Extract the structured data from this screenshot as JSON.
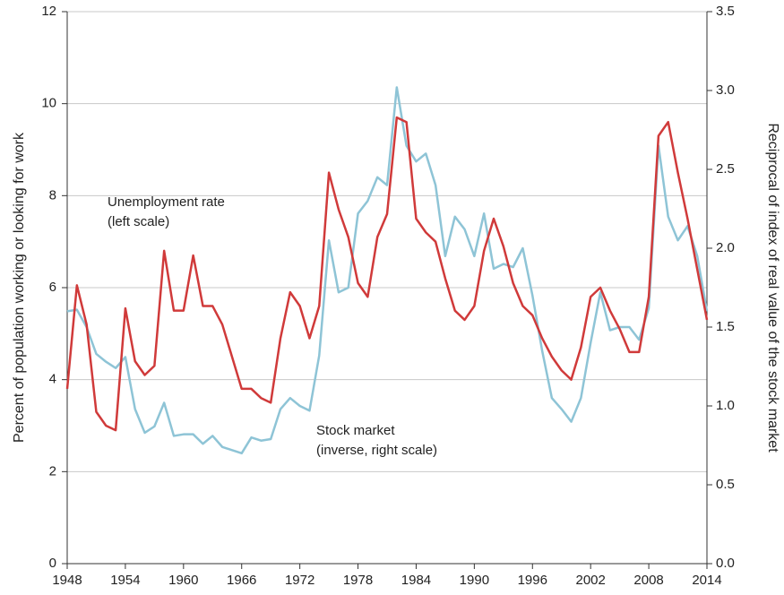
{
  "chart_data": {
    "type": "line",
    "y_label": "Percent of population working or looking for work",
    "y2_label": "Reciprocal of index of real value of the stock market",
    "x": [
      1948,
      1949,
      1950,
      1951,
      1952,
      1953,
      1954,
      1955,
      1956,
      1957,
      1958,
      1959,
      1960,
      1961,
      1962,
      1963,
      1964,
      1965,
      1966,
      1967,
      1968,
      1969,
      1970,
      1971,
      1972,
      1973,
      1974,
      1975,
      1976,
      1977,
      1978,
      1979,
      1980,
      1981,
      1982,
      1983,
      1984,
      1985,
      1986,
      1987,
      1988,
      1989,
      1990,
      1991,
      1992,
      1993,
      1994,
      1995,
      1996,
      1997,
      1998,
      1999,
      2000,
      2001,
      2002,
      2003,
      2004,
      2005,
      2006,
      2007,
      2008,
      2009,
      2010,
      2011,
      2012,
      2013,
      2014
    ],
    "series": [
      {
        "name": "Unemployment rate",
        "note": "(left scale)",
        "color": "#d03a3a",
        "axis": "y",
        "values": [
          3.8,
          6.05,
          5.2,
          3.3,
          3.0,
          2.9,
          5.55,
          4.4,
          4.1,
          4.3,
          6.8,
          5.5,
          5.5,
          6.7,
          5.6,
          5.6,
          5.2,
          4.5,
          3.8,
          3.8,
          3.6,
          3.5,
          4.9,
          5.9,
          5.6,
          4.9,
          5.6,
          8.5,
          7.7,
          7.1,
          6.1,
          5.8,
          7.1,
          7.6,
          9.7,
          9.6,
          7.5,
          7.2,
          7.0,
          6.2,
          5.5,
          5.3,
          5.6,
          6.8,
          7.5,
          6.9,
          6.1,
          5.6,
          5.4,
          4.9,
          4.5,
          4.2,
          4.0,
          4.7,
          5.8,
          6.0,
          5.5,
          5.1,
          4.6,
          4.6,
          5.8,
          9.3,
          9.6,
          8.5,
          7.5,
          6.4,
          5.3
        ]
      },
      {
        "name": "Stock market",
        "note": "(inverse, right scale)",
        "color": "#8ec4d6",
        "axis": "y2",
        "values": [
          1.6,
          1.61,
          1.5,
          1.33,
          1.28,
          1.24,
          1.31,
          0.98,
          0.83,
          0.87,
          1.02,
          0.81,
          0.82,
          0.82,
          0.76,
          0.81,
          0.74,
          0.72,
          0.7,
          0.8,
          0.78,
          0.79,
          0.98,
          1.05,
          1.0,
          0.97,
          1.32,
          2.05,
          1.72,
          1.75,
          2.22,
          2.3,
          2.45,
          2.4,
          3.02,
          2.65,
          2.55,
          2.6,
          2.4,
          1.95,
          2.2,
          2.12,
          1.95,
          2.22,
          1.87,
          1.9,
          1.88,
          2.0,
          1.7,
          1.35,
          1.05,
          0.98,
          0.9,
          1.05,
          1.4,
          1.72,
          1.48,
          1.5,
          1.5,
          1.42,
          1.62,
          2.65,
          2.2,
          2.05,
          2.14,
          1.95,
          1.6
        ]
      }
    ],
    "xlim": [
      1948,
      2014
    ],
    "xticks": [
      1948,
      1954,
      1960,
      1966,
      1972,
      1978,
      1984,
      1990,
      1996,
      2002,
      2008,
      2014
    ],
    "ylim": [
      0,
      12
    ],
    "yticks": [
      0,
      2,
      4,
      6,
      8,
      10,
      12
    ],
    "y2lim": [
      0,
      3.5
    ],
    "y2ticks": [
      {
        "value": 0,
        "label": "0.0"
      },
      0.5,
      {
        "value": 1,
        "label": "1.0"
      },
      1.5,
      {
        "value": 2,
        "label": "2.0"
      },
      2.5,
      {
        "value": 3,
        "label": "3.0"
      },
      3.5
    ],
    "grid": true
  }
}
